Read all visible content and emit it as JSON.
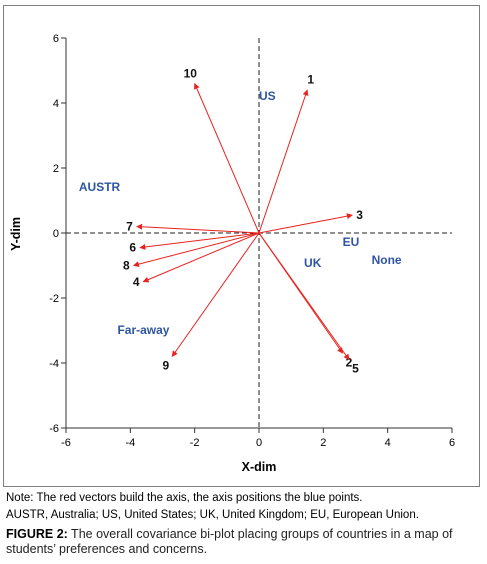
{
  "chart_data": {
    "type": "scatter",
    "title": "",
    "xlabel": "X-dim",
    "ylabel": "Y-dim",
    "xlim": [
      -6,
      6
    ],
    "ylim": [
      -6,
      6
    ],
    "x_ticks": [
      -6,
      -4,
      -2,
      0,
      2,
      4,
      6
    ],
    "y_ticks": [
      -6,
      -4,
      -2,
      0,
      2,
      4,
      6
    ],
    "grid": false,
    "reference_lines": "dashed lines at x=0 and y=0",
    "vectors": {
      "color": "#e8231f",
      "items": [
        {
          "label": "1",
          "x": 1.5,
          "y": 4.4
        },
        {
          "label": "2",
          "x": 2.6,
          "y": -3.7
        },
        {
          "label": "3",
          "x": 2.9,
          "y": 0.55
        },
        {
          "label": "4",
          "x": -3.6,
          "y": -1.5
        },
        {
          "label": "5",
          "x": 2.8,
          "y": -3.9
        },
        {
          "label": "6",
          "x": -3.7,
          "y": -0.45
        },
        {
          "label": "7",
          "x": -3.8,
          "y": 0.2
        },
        {
          "label": "8",
          "x": -3.9,
          "y": -1.0
        },
        {
          "label": "9",
          "x": -2.7,
          "y": -3.8
        },
        {
          "label": "10",
          "x": -2.0,
          "y": 4.6
        }
      ]
    },
    "points": {
      "color": "#2e55a3",
      "items": [
        {
          "label": "US",
          "x": 0.0,
          "y": 4.1
        },
        {
          "label": "AUSTR",
          "x": -5.6,
          "y": 1.3
        },
        {
          "label": "EU",
          "x": 2.6,
          "y": -0.4
        },
        {
          "label": "None",
          "x": 3.5,
          "y": -0.95
        },
        {
          "label": "UK",
          "x": 1.4,
          "y": -1.05
        },
        {
          "label": "Far-away",
          "x": -4.4,
          "y": -3.1
        }
      ]
    }
  },
  "caption": {
    "note": "Note: The red vectors build the axis, the axis positions the blue points.",
    "abbreviations": "AUSTR, Australia; US, United States; UK, United Kingdom; EU, European Union.",
    "figure_label": "FIGURE 2:",
    "figure_text": " The overall covariance bi-plot placing groups of countries in a map of students’ preferences and concerns."
  }
}
